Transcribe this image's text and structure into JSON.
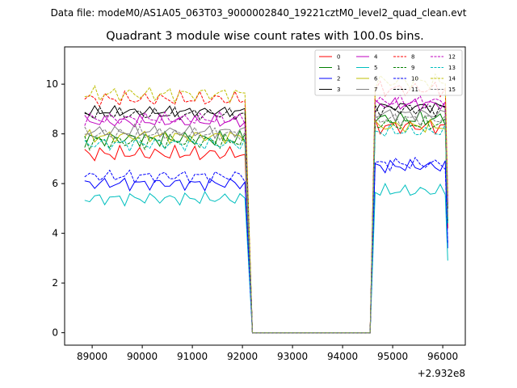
{
  "figure": {
    "suptitle": "Data file: modeM0/AS1A05_063T03_9000002840_19221cztM0_level2_quad_clean.evt",
    "offset_label": "+2.932e8"
  },
  "chart_data": {
    "type": "line",
    "title": "Quadrant 3 module wise count rates with 100.0s bins.",
    "xlabel": "",
    "ylabel": "",
    "xlim": [
      88450,
      96450
    ],
    "ylim": [
      -0.5,
      11.5
    ],
    "x_ticks": [
      89000,
      90000,
      91000,
      92000,
      93000,
      94000,
      95000,
      96000
    ],
    "x_tick_labels": [
      "89000",
      "90000",
      "91000",
      "92000",
      "93000",
      "94000",
      "95000",
      "96000"
    ],
    "y_ticks": [
      0,
      2,
      4,
      6,
      8,
      10
    ],
    "y_tick_labels": [
      "0",
      "2",
      "4",
      "6",
      "8",
      "10"
    ],
    "grid": false,
    "legend_position": "top-right",
    "legend_columns": 4,
    "gap": {
      "start": 92200,
      "end": 94550,
      "value": 0
    },
    "segments": [
      {
        "x_start": 88850,
        "x_end": 92050,
        "step": 100
      },
      {
        "x_start": 94650,
        "x_end": 96050,
        "step": 100
      }
    ],
    "series": [
      {
        "name": "0",
        "color": "#ff0000",
        "dash": "solid",
        "level1": 7.2,
        "level2": 8.3,
        "amp": 0.35,
        "end": 4.2
      },
      {
        "name": "1",
        "color": "#008000",
        "dash": "solid",
        "level1": 7.8,
        "level2": 8.6,
        "amp": 0.35,
        "end": 4.5
      },
      {
        "name": "2",
        "color": "#0000ff",
        "dash": "solid",
        "level1": 6.0,
        "level2": 6.7,
        "amp": 0.3,
        "end": 3.4
      },
      {
        "name": "3",
        "color": "#000000",
        "dash": "solid",
        "level1": 8.9,
        "level2": 9.1,
        "amp": 0.25,
        "end": 5.0
      },
      {
        "name": "4",
        "color": "#bf00bf",
        "dash": "solid",
        "level1": 8.5,
        "level2": 9.2,
        "amp": 0.3,
        "end": 5.2
      },
      {
        "name": "5",
        "color": "#00bfbf",
        "dash": "solid",
        "level1": 5.4,
        "level2": 5.7,
        "amp": 0.3,
        "end": 2.9
      },
      {
        "name": "6",
        "color": "#bfbf00",
        "dash": "solid",
        "level1": 7.9,
        "level2": 8.3,
        "amp": 0.3,
        "end": 4.6
      },
      {
        "name": "7",
        "color": "#808080",
        "dash": "solid",
        "level1": 8.1,
        "level2": 8.8,
        "amp": 0.3,
        "end": 4.8
      },
      {
        "name": "8",
        "color": "#ff0000",
        "dash": "dashed",
        "level1": 9.4,
        "level2": 9.8,
        "amp": 0.35,
        "end": 5.5
      },
      {
        "name": "9",
        "color": "#008000",
        "dash": "dashed",
        "level1": 7.7,
        "level2": 8.4,
        "amp": 0.35,
        "end": 4.4
      },
      {
        "name": "10",
        "color": "#0000ff",
        "dash": "dashed",
        "level1": 6.3,
        "level2": 6.8,
        "amp": 0.3,
        "end": 3.6
      },
      {
        "name": "11",
        "color": "#000000",
        "dash": "dashed",
        "level1": 8.8,
        "level2": 9.0,
        "amp": 0.3,
        "end": 5.0
      },
      {
        "name": "12",
        "color": "#bf00bf",
        "dash": "dashed",
        "level1": 8.6,
        "level2": 9.3,
        "amp": 0.3,
        "end": 5.2
      },
      {
        "name": "13",
        "color": "#00bfbf",
        "dash": "dashed",
        "level1": 7.6,
        "level2": 8.1,
        "amp": 0.3,
        "end": 4.4
      },
      {
        "name": "14",
        "color": "#bfbf00",
        "dash": "dashed",
        "level1": 9.6,
        "level2": 10.1,
        "amp": 0.35,
        "end": 5.6
      },
      {
        "name": "15",
        "color": "#808080",
        "dash": "dashed",
        "level1": 8.0,
        "level2": 8.6,
        "amp": 0.3,
        "end": 4.7
      }
    ]
  }
}
